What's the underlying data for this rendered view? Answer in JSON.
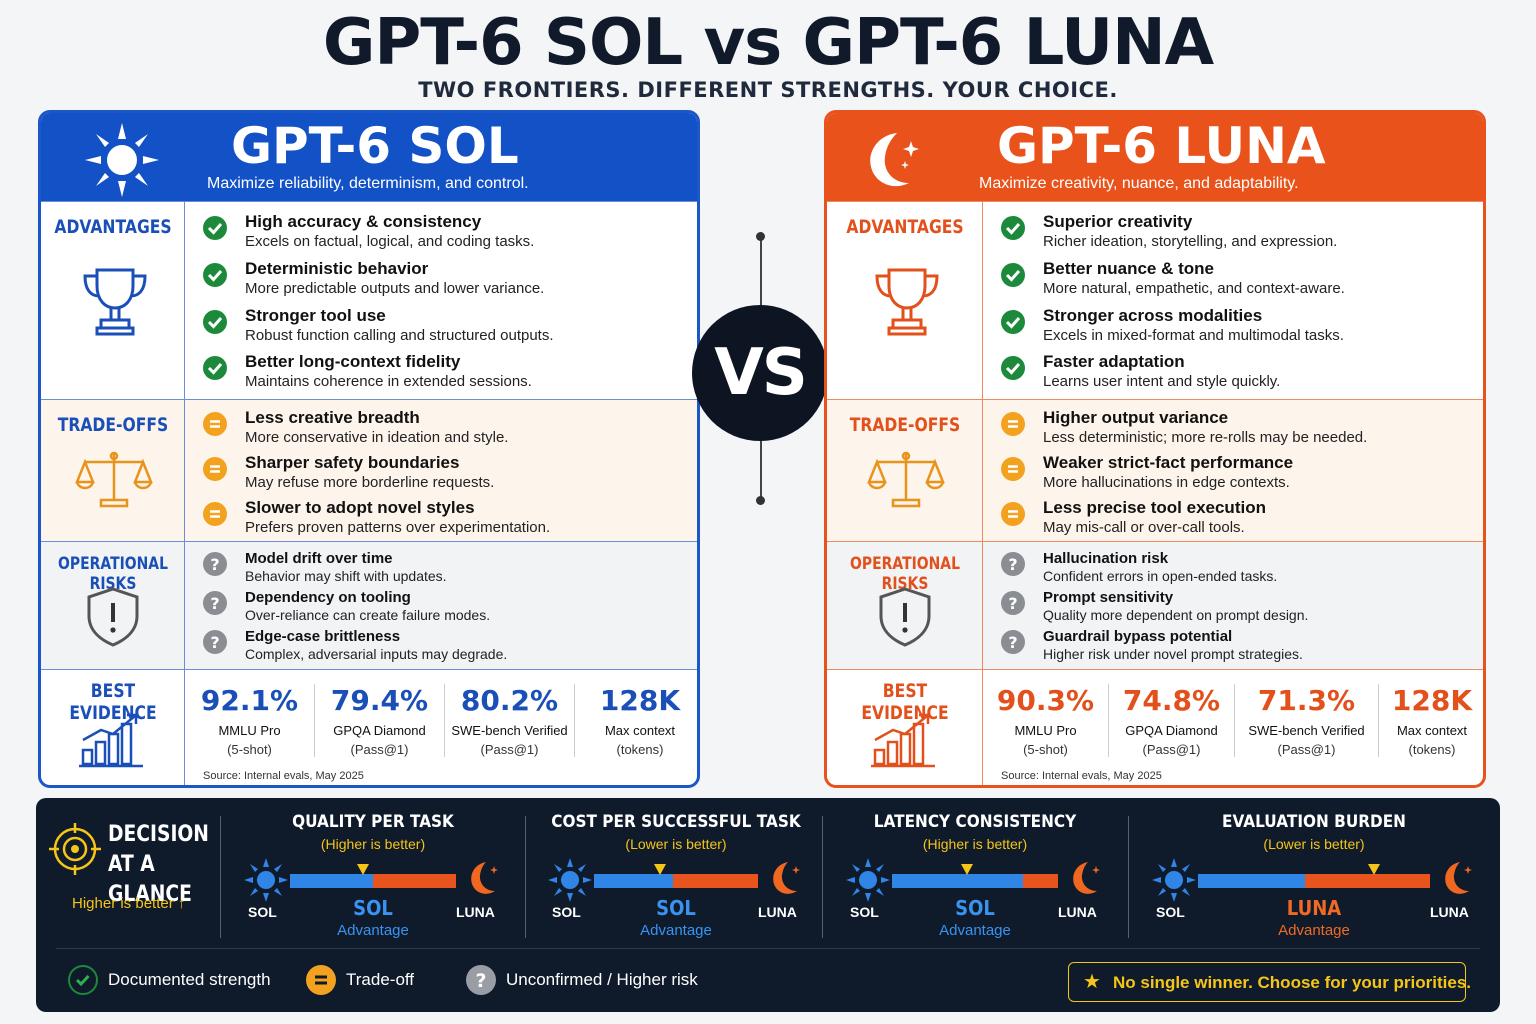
{
  "title": "GPT-6 SOL vs GPT-6 LUNA",
  "subtitle": "TWO FRONTIERS. DIFFERENT STRENGTHS. YOUR CHOICE.",
  "vs": "VS",
  "section_labels": {
    "advantages": "ADVANTAGES",
    "tradeoffs": "TRADE-OFFS",
    "risks": "OPERATIONAL RISKS",
    "evidence": "BEST EVIDENCE"
  },
  "sol": {
    "name": "GPT-6 SOL",
    "tagline": "Maximize reliability, determinism, and control.",
    "advantages": [
      {
        "title": "High accuracy & consistency",
        "desc": "Excels on factual, logical, and coding tasks."
      },
      {
        "title": "Deterministic behavior",
        "desc": "More predictable outputs and lower variance."
      },
      {
        "title": "Stronger tool use",
        "desc": "Robust function calling and structured outputs."
      },
      {
        "title": "Better long-context fidelity",
        "desc": "Maintains coherence in extended sessions."
      }
    ],
    "tradeoffs": [
      {
        "title": "Less creative breadth",
        "desc": "More conservative in ideation and style."
      },
      {
        "title": "Sharper safety boundaries",
        "desc": "May refuse more borderline requests."
      },
      {
        "title": "Slower to adopt novel styles",
        "desc": "Prefers proven patterns over experimentation."
      }
    ],
    "risks": [
      {
        "title": "Model drift over time",
        "desc": "Behavior may shift with updates."
      },
      {
        "title": "Dependency on tooling",
        "desc": "Over-reliance can create failure modes."
      },
      {
        "title": "Edge-case brittleness",
        "desc": "Complex, adversarial inputs may degrade."
      }
    ],
    "evidence": [
      {
        "value": "92.1%",
        "metric": "MMLU Pro",
        "sub": "(5-shot)"
      },
      {
        "value": "79.4%",
        "metric": "GPQA Diamond",
        "sub": "(Pass@1)"
      },
      {
        "value": "80.2%",
        "metric": "SWE-bench Verified",
        "sub": "(Pass@1)"
      },
      {
        "value": "128K",
        "metric": "Max context",
        "sub": "(tokens)"
      }
    ],
    "source": "Source: Internal evals, May 2025"
  },
  "luna": {
    "name": "GPT-6 LUNA",
    "tagline": "Maximize creativity, nuance, and adaptability.",
    "advantages": [
      {
        "title": "Superior creativity",
        "desc": "Richer ideation, storytelling, and expression."
      },
      {
        "title": "Better nuance & tone",
        "desc": "More natural, empathetic, and context-aware."
      },
      {
        "title": "Stronger across modalities",
        "desc": "Excels in mixed-format and multimodal tasks."
      },
      {
        "title": "Faster adaptation",
        "desc": "Learns user intent and style quickly."
      }
    ],
    "tradeoffs": [
      {
        "title": "Higher output variance",
        "desc": "Less deterministic; more re-rolls may be needed."
      },
      {
        "title": "Weaker strict-fact performance",
        "desc": "More hallucinations in edge contexts."
      },
      {
        "title": "Less precise tool execution",
        "desc": "May mis-call or over-call tools."
      }
    ],
    "risks": [
      {
        "title": "Hallucination risk",
        "desc": "Confident errors in open-ended tasks."
      },
      {
        "title": "Prompt sensitivity",
        "desc": "Quality more dependent on prompt design."
      },
      {
        "title": "Guardrail bypass potential",
        "desc": "Higher risk under novel prompt strategies."
      }
    ],
    "evidence": [
      {
        "value": "90.3%",
        "metric": "MMLU Pro",
        "sub": "(5-shot)"
      },
      {
        "value": "74.8%",
        "metric": "GPQA Diamond",
        "sub": "(Pass@1)"
      },
      {
        "value": "71.3%",
        "metric": "SWE-bench Verified",
        "sub": "(Pass@1)"
      },
      {
        "value": "128K",
        "metric": "Max context",
        "sub": "(tokens)"
      }
    ],
    "source": "Source: Internal evals, May 2025"
  },
  "decision": {
    "title_line1": "DECISION",
    "title_line2": "AT A GLANCE",
    "hint": "Higher is better ↑",
    "sol_label": "SOL",
    "luna_label": "LUNA",
    "metrics": [
      {
        "title": "QUALITY PER TASK",
        "hint": "(Higher is better)",
        "winner": "SOL",
        "advantage": "Advantage",
        "sol_share": 0.5,
        "marker": 0.44
      },
      {
        "title": "COST PER SUCCESSFUL TASK",
        "hint": "(Lower is better)",
        "winner": "SOL",
        "advantage": "Advantage",
        "sol_share": 0.48,
        "marker": 0.4
      },
      {
        "title": "LATENCY CONSISTENCY",
        "hint": "(Higher is better)",
        "winner": "SOL",
        "advantage": "Advantage",
        "sol_share": 0.79,
        "marker": 0.45
      },
      {
        "title": "EVALUATION BURDEN",
        "hint": "(Lower is better)",
        "winner": "LUNA",
        "advantage": "Advantage",
        "sol_share": 0.46,
        "marker": 0.76
      }
    ]
  },
  "legend": [
    {
      "label": "Documented strength",
      "kind": "ok"
    },
    {
      "label": "Trade-off",
      "kind": "tr"
    },
    {
      "label": "Unconfirmed / Higher risk",
      "kind": "rk"
    }
  ],
  "winner_note": "No single winner. Choose for your priorities.",
  "colors": {
    "sol": "#1251c6",
    "luna": "#e9531b",
    "strength": "#1c8a3a",
    "tradeoff": "#f2a21e",
    "risk": "#8a8d92",
    "accent": "#f5c518"
  }
}
